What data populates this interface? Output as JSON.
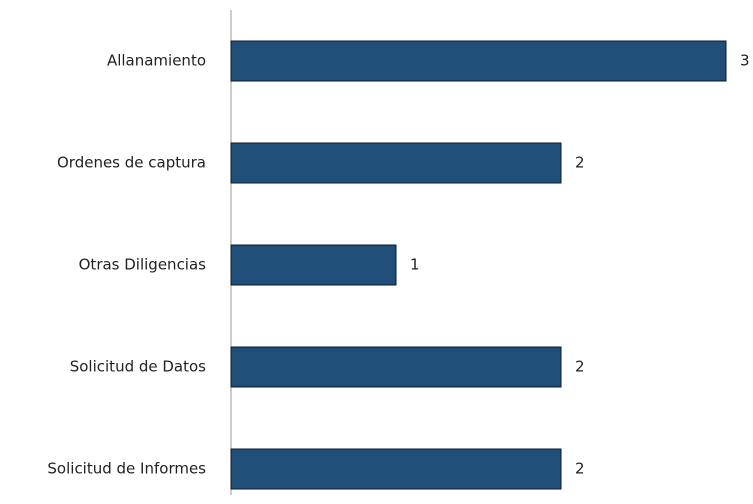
{
  "chart_data": {
    "type": "bar",
    "orientation": "horizontal",
    "categories": [
      "Allanamiento",
      "Ordenes de captura",
      "Otras Diligencias",
      "Solicitud de Datos",
      "Solicitud de Informes"
    ],
    "values": [
      3,
      2,
      1,
      2,
      2
    ],
    "color": "#1f4e79",
    "xlim": [
      0,
      3
    ]
  }
}
